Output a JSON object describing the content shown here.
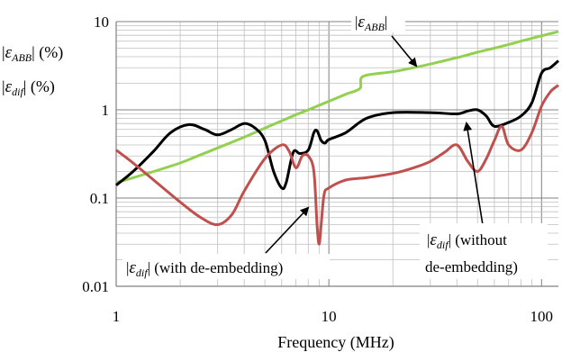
{
  "chart_data": {
    "type": "line",
    "title": "",
    "xlabel": "Frequency (MHz)",
    "ylabel": "",
    "x_scale": "log",
    "y_scale": "log",
    "xlim": [
      1,
      120
    ],
    "ylim": [
      0.01,
      10
    ],
    "grid": true,
    "x_ticks": [
      {
        "value": 1,
        "label": "1"
      },
      {
        "value": 10,
        "label": "10"
      },
      {
        "value": 100,
        "label": "100"
      }
    ],
    "y_ticks": [
      {
        "value": 0.01,
        "label": "0.01"
      },
      {
        "value": 0.1,
        "label": "0.1"
      },
      {
        "value": 1,
        "label": "1"
      },
      {
        "value": 10,
        "label": "10"
      }
    ],
    "y_axis_text": {
      "line1": {
        "pre": "|",
        "sym": "ε",
        "sub": "ABB",
        "post": "| (%)"
      },
      "line2": {
        "pre": "|",
        "sym": "ε",
        "sub": "dif",
        "post": "| (%)"
      }
    },
    "annotations": [
      {
        "id": "abb",
        "pre": "|",
        "sym": "ε",
        "sub": "ABB",
        "post": "|"
      },
      {
        "id": "with",
        "pre": "|",
        "sym": "ε",
        "sub": "dif",
        "post": "| (with de-embedding)"
      },
      {
        "id": "without",
        "pre": "|",
        "sym": "ε",
        "sub": "dif",
        "post": "| (without",
        "line2": "de-embedding)"
      }
    ],
    "series": [
      {
        "color": "#92d050",
        "x": [
          1,
          1.2,
          1.5,
          2,
          2.5,
          3,
          4,
          5,
          6,
          7,
          8,
          10,
          12,
          14,
          14.5,
          20,
          25,
          30,
          40,
          50,
          60,
          70,
          80,
          100,
          120
        ],
        "y": [
          0.15,
          0.17,
          0.2,
          0.25,
          0.31,
          0.37,
          0.49,
          0.62,
          0.75,
          0.88,
          1.0,
          1.25,
          1.5,
          1.75,
          2.4,
          2.7,
          3.0,
          3.3,
          3.9,
          4.5,
          5.0,
          5.5,
          6.0,
          6.9,
          7.7
        ]
      },
      {
        "color": "#000000",
        "x": [
          1,
          1.2,
          1.5,
          1.8,
          2.2,
          2.6,
          3,
          3.5,
          4,
          4.5,
          5,
          5.5,
          6,
          6.3,
          6.8,
          7.3,
          8,
          8.5,
          8.8,
          9.2,
          9.6,
          10,
          12,
          15,
          20,
          30,
          40,
          45,
          50,
          55,
          60,
          70,
          80,
          90,
          100,
          110,
          120
        ],
        "y": [
          0.14,
          0.2,
          0.34,
          0.55,
          0.68,
          0.6,
          0.52,
          0.6,
          0.7,
          0.62,
          0.45,
          0.2,
          0.13,
          0.15,
          0.33,
          0.32,
          0.35,
          0.55,
          0.58,
          0.45,
          0.42,
          0.46,
          0.55,
          0.8,
          0.93,
          0.93,
          0.9,
          0.97,
          1.0,
          0.85,
          0.65,
          0.72,
          0.85,
          1.2,
          2.6,
          3.0,
          3.6
        ]
      },
      {
        "color": "#c0504d",
        "x": [
          1,
          1.2,
          1.5,
          2,
          2.5,
          3,
          3.5,
          4,
          5,
          6,
          6.5,
          7,
          7.5,
          8,
          8.5,
          8.8,
          9,
          9.2,
          9.5,
          10,
          12,
          15,
          20,
          25,
          30,
          35,
          40,
          45,
          50,
          55,
          60,
          65,
          70,
          80,
          90,
          100,
          110,
          120
        ],
        "y": [
          0.35,
          0.25,
          0.16,
          0.09,
          0.06,
          0.05,
          0.065,
          0.12,
          0.28,
          0.4,
          0.34,
          0.22,
          0.3,
          0.3,
          0.2,
          0.05,
          0.03,
          0.05,
          0.11,
          0.13,
          0.16,
          0.17,
          0.19,
          0.22,
          0.26,
          0.33,
          0.4,
          0.26,
          0.2,
          0.28,
          0.45,
          0.65,
          0.4,
          0.35,
          0.55,
          1.1,
          1.6,
          1.9
        ]
      }
    ]
  }
}
